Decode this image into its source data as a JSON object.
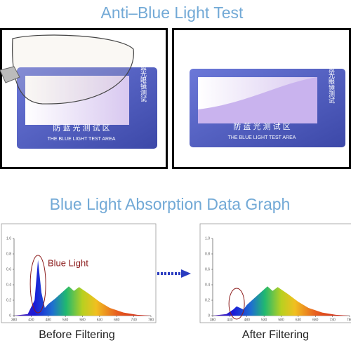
{
  "title": "Anti–Blue Light Test",
  "cards": [
    {
      "side_text": "防蓝光眼镜测试",
      "bottom_text": "防 蓝 光 测 试 区",
      "english": "THE BLUE LIGHT TEST AREA"
    },
    {
      "side_text": "防蓝光眼镜测试",
      "bottom_text": "防 蓝 光 测 试 区",
      "english": "THE BLUE LIGHT TEST AREA"
    }
  ],
  "graph_title": "Blue Light Absorption Data Graph",
  "chart_data": [
    {
      "type": "area",
      "caption": "Before Filtering",
      "annotation": "Blue Light",
      "x": [
        380,
        420,
        440,
        450,
        460,
        470,
        480,
        500,
        520,
        540,
        555,
        570,
        600,
        630,
        660,
        700,
        740,
        780
      ],
      "values": [
        0,
        0.02,
        0.2,
        0.72,
        0.3,
        0.1,
        0.15,
        0.22,
        0.3,
        0.38,
        0.32,
        0.37,
        0.28,
        0.18,
        0.1,
        0.04,
        0.01,
        0
      ],
      "xlim": [
        380,
        780
      ],
      "ylim": [
        0,
        1
      ],
      "xticks": [
        380,
        430,
        480,
        530,
        580,
        630,
        680,
        730,
        780
      ],
      "yticks": [
        0,
        0.2,
        0.4,
        0.6,
        0.8,
        {
          "value": 1,
          "label": "1.0"
        }
      ]
    },
    {
      "type": "area",
      "caption": "After Filtering",
      "x": [
        380,
        420,
        440,
        450,
        460,
        470,
        480,
        500,
        520,
        540,
        555,
        570,
        600,
        630,
        660,
        700,
        740,
        780
      ],
      "values": [
        0,
        0.02,
        0.08,
        0.12,
        0.1,
        0.08,
        0.14,
        0.22,
        0.3,
        0.38,
        0.32,
        0.37,
        0.28,
        0.18,
        0.1,
        0.04,
        0.01,
        0
      ],
      "xlim": [
        380,
        780
      ],
      "ylim": [
        0,
        1
      ],
      "xticks": [
        380,
        430,
        480,
        530,
        580,
        630,
        680,
        730,
        780
      ],
      "yticks": [
        0,
        0.2,
        0.4,
        0.6,
        0.8,
        {
          "value": 1,
          "label": "1.0"
        }
      ]
    }
  ]
}
